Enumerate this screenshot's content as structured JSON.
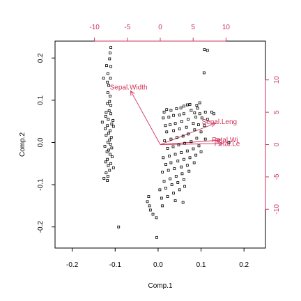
{
  "chart_data": {
    "type": "scatter",
    "subtype": "biplot",
    "title": "",
    "xlabel": "Comp.1",
    "ylabel": "Comp.2",
    "xlim": [
      -0.24,
      0.25
    ],
    "ylim": [
      -0.25,
      0.24
    ],
    "x_ticks": [
      -0.2,
      -0.1,
      0.0,
      0.1,
      0.2
    ],
    "x_tick_labels": [
      "-0.2",
      "-0.1",
      "0.0",
      "0.1",
      "0.2"
    ],
    "y_ticks": [
      -0.2,
      -0.1,
      0.0,
      0.1,
      0.2
    ],
    "y_tick_labels": [
      "-0.2",
      "-0.1",
      "0.0",
      "0.1",
      "0.2"
    ],
    "top_axis": {
      "range": [
        -16,
        16
      ],
      "ticks": [
        -10,
        -5,
        0,
        5,
        10
      ],
      "labels": [
        "-10",
        "-5",
        "0",
        "5",
        "10"
      ],
      "color": "#d0325a"
    },
    "right_axis": {
      "range": [
        -16,
        16
      ],
      "ticks": [
        -10,
        -5,
        0,
        5,
        10
      ],
      "labels": [
        "-10",
        "-5",
        "0",
        "5",
        "10"
      ],
      "color": "#d0325a"
    },
    "grid": false,
    "point_marker": "square",
    "point_color": "#000000",
    "loading_color": "#d0325a",
    "loadings": [
      {
        "label": "Sepal.Width",
        "x": -4.5,
        "y": 8.3
      },
      {
        "label": "Sepal.Leng",
        "x": 8.4,
        "y": 3.3
      },
      {
        "label": "Petal.Wi",
        "x": 9.2,
        "y": 0.7
      },
      {
        "label": "Petal.Le",
        "x": 9.5,
        "y": 0.15
      }
    ],
    "series": [
      {
        "points": [
          [
            -0.11,
            0.225
          ],
          [
            -0.112,
            0.212
          ],
          [
            -0.113,
            0.198
          ],
          [
            -0.12,
            0.182
          ],
          [
            -0.11,
            0.18
          ],
          [
            -0.117,
            0.163
          ],
          [
            -0.127,
            0.152
          ],
          [
            -0.111,
            0.152
          ],
          [
            -0.118,
            0.143
          ],
          [
            -0.115,
            0.135
          ],
          [
            -0.117,
            0.118
          ],
          [
            -0.112,
            0.11
          ],
          [
            -0.113,
            0.097
          ],
          [
            -0.118,
            0.092
          ],
          [
            -0.11,
            0.088
          ],
          [
            -0.114,
            0.075
          ],
          [
            -0.121,
            0.071
          ],
          [
            -0.11,
            0.068
          ],
          [
            -0.122,
            0.062
          ],
          [
            -0.116,
            0.055
          ],
          [
            -0.105,
            0.052
          ],
          [
            -0.13,
            0.048
          ],
          [
            -0.108,
            0.044
          ],
          [
            -0.118,
            0.04
          ],
          [
            -0.104,
            0.038
          ],
          [
            -0.123,
            0.033
          ],
          [
            -0.112,
            0.028
          ],
          [
            -0.115,
            0.022
          ],
          [
            -0.121,
            0.017
          ],
          [
            -0.109,
            0.012
          ],
          [
            -0.113,
            0.006
          ],
          [
            -0.117,
            0.001
          ],
          [
            -0.111,
            -0.004
          ],
          [
            -0.124,
            -0.009
          ],
          [
            -0.108,
            -0.013
          ],
          [
            -0.115,
            -0.018
          ],
          [
            -0.119,
            -0.022
          ],
          [
            -0.112,
            -0.028
          ],
          [
            -0.107,
            -0.034
          ],
          [
            -0.118,
            -0.04
          ],
          [
            -0.122,
            -0.046
          ],
          [
            -0.11,
            -0.05
          ],
          [
            -0.116,
            -0.055
          ],
          [
            -0.104,
            -0.06
          ],
          [
            -0.113,
            -0.066
          ],
          [
            -0.121,
            -0.072
          ],
          [
            -0.117,
            -0.08
          ],
          [
            -0.126,
            -0.085
          ],
          [
            -0.118,
            -0.09
          ],
          [
            -0.092,
            -0.2
          ]
        ]
      },
      {
        "points": [
          [
            0.108,
            0.22
          ],
          [
            0.115,
            0.218
          ],
          [
            0.107,
            0.165
          ],
          [
            0.097,
            0.094
          ],
          [
            0.09,
            0.088
          ],
          [
            0.092,
            0.081
          ],
          [
            0.074,
            0.09
          ],
          [
            0.068,
            0.089
          ],
          [
            0.06,
            0.086
          ],
          [
            0.053,
            0.082
          ],
          [
            0.043,
            0.08
          ],
          [
            0.03,
            0.076
          ],
          [
            0.02,
            0.078
          ],
          [
            0.014,
            0.072
          ],
          [
            0.077,
            0.076
          ],
          [
            0.085,
            0.07
          ],
          [
            0.097,
            0.068
          ],
          [
            0.11,
            0.072
          ],
          [
            0.06,
            0.068
          ],
          [
            0.05,
            0.065
          ],
          [
            0.036,
            0.064
          ],
          [
            0.025,
            0.06
          ],
          [
            0.012,
            0.058
          ],
          [
            0.088,
            0.06
          ],
          [
            0.102,
            0.058
          ],
          [
            0.115,
            0.055
          ],
          [
            0.13,
            0.068
          ],
          [
            0.125,
            0.072
          ],
          [
            0.07,
            0.055
          ],
          [
            0.055,
            0.05
          ],
          [
            0.04,
            0.045
          ],
          [
            0.028,
            0.042
          ],
          [
            0.017,
            0.04
          ],
          [
            0.082,
            0.045
          ],
          [
            0.094,
            0.042
          ],
          [
            0.108,
            0.04
          ],
          [
            0.066,
            0.036
          ],
          [
            0.05,
            0.032
          ],
          [
            0.036,
            0.028
          ],
          [
            0.02,
            0.025
          ],
          [
            0.085,
            0.03
          ],
          [
            0.1,
            0.025
          ],
          [
            0.07,
            0.02
          ],
          [
            0.058,
            0.015
          ],
          [
            0.044,
            0.012
          ],
          [
            0.03,
            0.008
          ],
          [
            0.015,
            0.004
          ],
          [
            0.09,
            0.01
          ],
          [
            0.11,
            0.008
          ],
          [
            0.077,
            0.002
          ],
          [
            0.062,
            -0.002
          ],
          [
            0.048,
            -0.006
          ],
          [
            0.035,
            -0.01
          ],
          [
            0.022,
            -0.014
          ],
          [
            0.095,
            -0.008
          ],
          [
            0.082,
            -0.015
          ],
          [
            0.068,
            -0.02
          ],
          [
            0.054,
            -0.024
          ],
          [
            0.04,
            -0.028
          ],
          [
            0.026,
            -0.032
          ],
          [
            0.012,
            -0.036
          ],
          [
            0.1,
            -0.022
          ],
          [
            0.088,
            -0.03
          ],
          [
            0.074,
            -0.036
          ],
          [
            0.06,
            -0.04
          ],
          [
            0.046,
            -0.044
          ],
          [
            0.03,
            -0.048
          ],
          [
            0.018,
            -0.052
          ],
          [
            0.084,
            -0.048
          ],
          [
            0.068,
            -0.054
          ],
          [
            0.054,
            -0.058
          ],
          [
            0.038,
            -0.062
          ],
          [
            0.024,
            -0.066
          ],
          [
            0.01,
            -0.07
          ],
          [
            0.072,
            -0.068
          ],
          [
            0.056,
            -0.074
          ],
          [
            0.042,
            -0.08
          ],
          [
            0.028,
            -0.086
          ],
          [
            0.014,
            -0.092
          ],
          [
            0.06,
            -0.088
          ],
          [
            0.046,
            -0.095
          ],
          [
            0.032,
            -0.1
          ],
          [
            0.018,
            -0.108
          ],
          [
            0.004,
            -0.112
          ],
          [
            0.062,
            -0.104
          ],
          [
            0.05,
            -0.112
          ],
          [
            0.036,
            -0.12
          ],
          [
            0.022,
            -0.128
          ],
          [
            0.008,
            -0.132
          ],
          [
            -0.022,
            -0.128
          ],
          [
            -0.025,
            -0.14
          ],
          [
            -0.02,
            -0.15
          ],
          [
            -0.012,
            -0.17
          ],
          [
            -0.004,
            -0.178
          ],
          [
            -0.018,
            -0.16
          ],
          [
            -0.003,
            -0.225
          ],
          [
            0.01,
            -0.15
          ],
          [
            0.04,
            -0.138
          ],
          [
            0.058,
            -0.142
          ],
          [
            0.165,
            -0.0
          ]
        ]
      }
    ]
  }
}
